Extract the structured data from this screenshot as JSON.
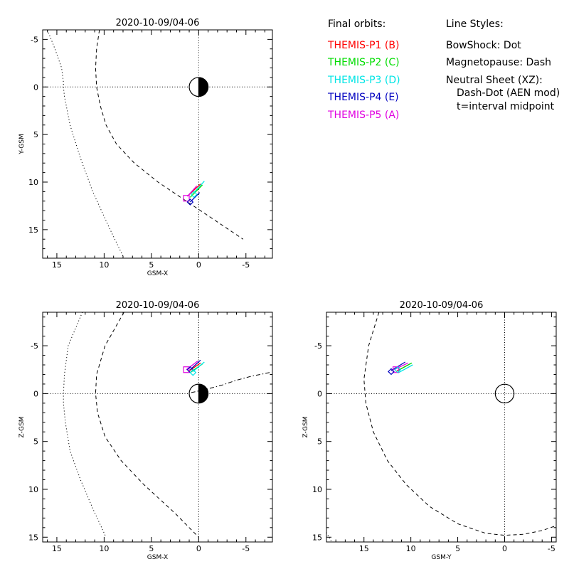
{
  "legend": {
    "orbits_title": "Final orbits:",
    "orbits": [
      {
        "label": "THEMIS-P1 (B)",
        "color": "#ff0000"
      },
      {
        "label": "THEMIS-P2 (C)",
        "color": "#00dd00"
      },
      {
        "label": "THEMIS-P3 (D)",
        "color": "#00e5e5"
      },
      {
        "label": "THEMIS-P4 (E)",
        "color": "#0000c0"
      },
      {
        "label": "THEMIS-P5 (A)",
        "color": "#e000e0"
      }
    ],
    "styles_title": "Line Styles:",
    "styles": [
      "BowShock: Dot",
      "Magnetopause: Dash",
      "Neutral Sheet (XZ):",
      "Dash-Dot (AEN mod)",
      "t=interval midpoint"
    ]
  },
  "chart_data": [
    {
      "type": "line",
      "title": "2020-10-09/04-06",
      "xlabel": "GSM-X",
      "ylabel": "Y-GSM",
      "xlim": [
        16.5,
        -7.8
      ],
      "ylim": [
        -6,
        18
      ],
      "x_ticks": [
        "15",
        "10",
        "5",
        "0",
        "-5"
      ],
      "y_ticks": [
        "-5",
        "0",
        "5",
        "10",
        "15"
      ],
      "earth": true,
      "series": [
        {
          "role": "bowshock",
          "style": "dot",
          "x": [
            16,
            15.2,
            14.5,
            14.3,
            14.3,
            14.2,
            13.6,
            12.5,
            11.2,
            9.6,
            8
          ],
          "y": [
            -6,
            -4,
            -2,
            -0.5,
            0,
            1,
            4,
            7.5,
            11,
            14.5,
            17.8
          ]
        },
        {
          "role": "magnetopause",
          "style": "dash",
          "x": [
            10.5,
            10.8,
            10.9,
            10.8,
            10.4,
            9.8,
            8.7,
            6.8,
            4.3,
            1.3,
            -1.7,
            -4.7
          ],
          "y": [
            -6,
            -4,
            -2,
            0,
            2,
            4,
            6,
            8,
            10,
            12,
            14,
            16
          ]
        },
        {
          "style": "solid",
          "color": "#ff0000",
          "x": [
            1.1,
            -0.2
          ],
          "y": [
            11.4,
            10.2
          ]
        },
        {
          "style": "solid",
          "color": "#00dd00",
          "x": [
            0.9,
            -0.4
          ],
          "y": [
            11.6,
            10.3
          ]
        },
        {
          "style": "solid",
          "color": "#00e5e5",
          "x": [
            0.5,
            -0.6
          ],
          "y": [
            11.1,
            9.9
          ]
        },
        {
          "style": "solid",
          "color": "#0000c0",
          "x": [
            0.9,
            -0.1
          ],
          "y": [
            12.1,
            11.1
          ]
        },
        {
          "style": "solid",
          "color": "#e000e0",
          "x": [
            1.2,
            0.2
          ],
          "y": [
            11.5,
            10.4
          ]
        }
      ],
      "markers": [
        {
          "shape": "square",
          "color": "#e000e0",
          "x": 1.3,
          "y": 11.7
        },
        {
          "shape": "diamond",
          "color": "#0000c0",
          "x": 0.9,
          "y": 12.1
        },
        {
          "shape": "diamond",
          "color": "#00e5e5",
          "x": 0.5,
          "y": 11.3
        }
      ]
    },
    {
      "type": "line",
      "title": "2020-10-09/04-06",
      "xlabel": "GSM-X",
      "ylabel": "Z-GSM",
      "xlim": [
        16.5,
        -7.8
      ],
      "ylim": [
        -8.5,
        15.5
      ],
      "x_ticks": [
        "15",
        "10",
        "5",
        "0",
        "-5"
      ],
      "y_ticks": [
        "-5",
        "0",
        "5",
        "10",
        "15"
      ],
      "earth": true,
      "series": [
        {
          "role": "bowshock",
          "style": "dot",
          "x": [
            12.3,
            13.8,
            14.2,
            14.3,
            14.3,
            14.1,
            13.6,
            12.5,
            11.2,
            9.8
          ],
          "y": [
            -8.5,
            -5,
            -2,
            0,
            1,
            3,
            6,
            9,
            12,
            15
          ]
        },
        {
          "role": "magnetopause",
          "style": "dash",
          "x": [
            7.9,
            9.9,
            10.8,
            10.9,
            10.7,
            9.9,
            8.2,
            5.8,
            2.5,
            0
          ],
          "y": [
            -8.5,
            -5,
            -2,
            0,
            2,
            4.5,
            7,
            9.5,
            12.5,
            15
          ]
        },
        {
          "role": "neutral-sheet",
          "style": "dashdot",
          "x": [
            0.8,
            -1,
            -2.5,
            -4,
            -5.5,
            -7.5
          ],
          "y": [
            -0.1,
            -0.5,
            -0.9,
            -1.4,
            -1.8,
            -2.2
          ]
        },
        {
          "style": "solid",
          "color": "#ff0000",
          "x": [
            1.1,
            -0.2
          ],
          "y": [
            -2.3,
            -3.2
          ]
        },
        {
          "style": "solid",
          "color": "#00dd00",
          "x": [
            0.9,
            -0.4
          ],
          "y": [
            -2.2,
            -3.1
          ]
        },
        {
          "style": "solid",
          "color": "#00e5e5",
          "x": [
            0.6,
            -0.6
          ],
          "y": [
            -2.3,
            -3.3
          ]
        },
        {
          "style": "solid",
          "color": "#0000c0",
          "x": [
            0.9,
            -0.2
          ],
          "y": [
            -2.5,
            -3.5
          ]
        },
        {
          "style": "solid",
          "color": "#e000e0",
          "x": [
            1.3,
            0.1
          ],
          "y": [
            -2.5,
            -3.4
          ]
        }
      ],
      "markers": [
        {
          "shape": "square",
          "color": "#e000e0",
          "x": 1.3,
          "y": -2.5
        },
        {
          "shape": "diamond",
          "color": "#0000c0",
          "x": 0.9,
          "y": -2.5
        },
        {
          "shape": "diamond",
          "color": "#00e5e5",
          "x": 0.6,
          "y": -2.2
        }
      ]
    },
    {
      "type": "line",
      "title": "2020-10-09/04-06",
      "xlabel": "GSM-Y",
      "ylabel": "Z-GSM",
      "xlim": [
        19,
        -5.5
      ],
      "ylim": [
        -8.5,
        15.5
      ],
      "x_ticks": [
        "15",
        "10",
        "5",
        "0",
        "-5"
      ],
      "y_ticks": [
        "-5",
        "0",
        "5",
        "10",
        "15"
      ],
      "earth": false,
      "series": [
        {
          "role": "bowshock",
          "style": "dot",
          "x": [
            19,
            18.5
          ],
          "y": [
            14.5,
            15.4
          ]
        },
        {
          "role": "magnetopause",
          "style": "dash",
          "x": [
            13.4,
            14.5,
            15,
            14.8,
            14,
            12.5,
            10.5,
            8,
            5,
            2,
            0,
            -2,
            -4,
            -5.5
          ],
          "y": [
            -8.5,
            -5,
            -1.5,
            1,
            4,
            7,
            9.5,
            11.8,
            13.6,
            14.6,
            14.8,
            14.7,
            14.3,
            13.8
          ]
        },
        {
          "style": "solid",
          "color": "#ff0000",
          "x": [
            11.6,
            10.1
          ],
          "y": [
            -2.3,
            -3.1
          ]
        },
        {
          "style": "solid",
          "color": "#00dd00",
          "x": [
            11.4,
            9.9
          ],
          "y": [
            -2.4,
            -3.2
          ]
        },
        {
          "style": "solid",
          "color": "#00e5e5",
          "x": [
            11.3,
            9.8
          ],
          "y": [
            -2.2,
            -3.0
          ]
        },
        {
          "style": "solid",
          "color": "#0000c0",
          "x": [
            12.1,
            10.6
          ],
          "y": [
            -2.4,
            -3.3
          ]
        },
        {
          "style": "solid",
          "color": "#e000e0",
          "x": [
            11.8,
            10.3
          ],
          "y": [
            -2.5,
            -3.2
          ]
        }
      ],
      "markers": [
        {
          "shape": "square",
          "color": "#e000e0",
          "x": 11.6,
          "y": -2.5
        },
        {
          "shape": "diamond",
          "color": "#0000c0",
          "x": 12.1,
          "y": -2.3
        },
        {
          "shape": "diamond",
          "color": "#00e5e5",
          "x": 11.4,
          "y": -2.5
        }
      ]
    }
  ]
}
